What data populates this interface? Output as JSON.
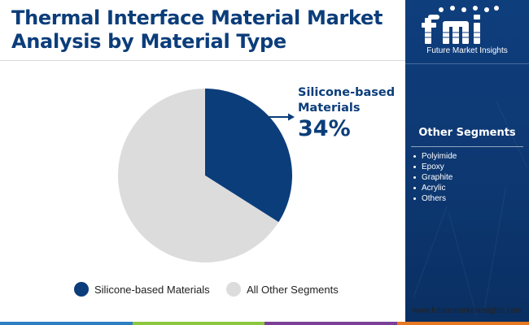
{
  "header": {
    "title": "Thermal Interface Material Market Analysis by Material Type"
  },
  "chart_data": {
    "type": "pie",
    "slices": [
      {
        "label": "Silicone-based Materials",
        "value": 34,
        "color": "#0b3d7a"
      },
      {
        "label": "All Other Segments",
        "value": 66,
        "color": "#dcdcdc"
      }
    ],
    "annotation": {
      "label": "Silicone-based Materials",
      "value_text": "34%"
    },
    "legend": {
      "position": "bottom",
      "items": [
        {
          "label": "Silicone-based Materials",
          "color": "#0b3d7a"
        },
        {
          "label": "All Other Segments",
          "color": "#dcdcdc"
        }
      ]
    }
  },
  "sidebar": {
    "logo_text": "fmi",
    "logo_caption": "Future Market Insights",
    "segments_title": "Other Segments",
    "segments": [
      "Polyimide",
      "Epoxy",
      "Graphite",
      "Acrylic",
      "Others"
    ],
    "website": "www.futuremarketinsights.com",
    "background_color": "#0f3e7d"
  },
  "footer": {
    "bar_colors": [
      "#2e7fc1",
      "#8dc63f",
      "#7b3f98",
      "#e87722"
    ]
  }
}
